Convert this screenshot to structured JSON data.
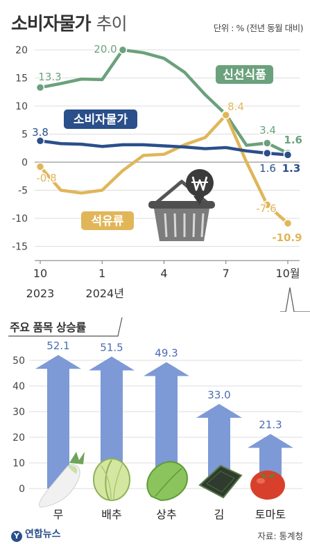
{
  "header": {
    "title": "소비자물가",
    "subtitle": "추이",
    "unit_note": "단위 : % (전년 동월 대비)"
  },
  "chart_data": [
    {
      "type": "line",
      "x": [
        "2023-10",
        "2023-11",
        "2023-12",
        "2024-01",
        "2024-02",
        "2024-03",
        "2024-04",
        "2024-05",
        "2024-06",
        "2024-07",
        "2024-08",
        "2024-09",
        "2024-10"
      ],
      "x_tick_labels": [
        "10",
        "1",
        "4",
        "7",
        "10월"
      ],
      "x_year_labels": [
        "2023",
        "2024년"
      ],
      "ylim": [
        -15,
        20
      ],
      "yticks": [
        "20",
        "15",
        "10",
        "5",
        "0",
        "-5",
        "-10",
        "-15"
      ],
      "grid": true,
      "series": [
        {
          "name": "신선식품",
          "color": "#6ba17c",
          "values": [
            13.3,
            14.0,
            14.8,
            14.7,
            20.0,
            19.5,
            18.5,
            16.0,
            12.0,
            8.5,
            3.0,
            3.4,
            1.6
          ]
        },
        {
          "name": "소비자물가",
          "color": "#2a4f8a",
          "values": [
            3.8,
            3.3,
            3.2,
            2.8,
            3.1,
            3.1,
            2.9,
            2.7,
            2.4,
            2.6,
            2.0,
            1.6,
            1.3
          ]
        },
        {
          "name": "석유류",
          "color": "#e0b659",
          "values": [
            -0.8,
            -5.0,
            -5.5,
            -5.0,
            -1.5,
            1.2,
            1.4,
            3.1,
            4.4,
            8.4,
            0.0,
            -7.6,
            -10.9
          ]
        }
      ],
      "data_labels": [
        "20.0",
        "13.3",
        "8.4",
        "3.4",
        "1.6",
        "3.8",
        "1.6",
        "1.3",
        "-0.8",
        "-7.6",
        "-10.9"
      ]
    },
    {
      "type": "bar",
      "title": "주요 품목 상승률",
      "categories": [
        "무",
        "배추",
        "상추",
        "김",
        "토마토"
      ],
      "values": [
        52.1,
        51.5,
        49.3,
        33.0,
        21.3
      ],
      "value_labels": [
        "52.1",
        "51.5",
        "49.3",
        "33.0",
        "21.3"
      ],
      "ylim": [
        0,
        55
      ],
      "yticks": [
        "50",
        "40",
        "30",
        "20",
        "10",
        "0"
      ],
      "grid": true
    }
  ],
  "footer": {
    "logo": "연합뉴스",
    "source": "자료: 통계청"
  },
  "colors": {
    "fresh_food": "#6ba17c",
    "cpi": "#2a4f8a",
    "oil": "#e0b659",
    "bar_arrow": "#7d99d6",
    "value_label": "#4a6cb3"
  },
  "icons": [
    "won-coin-icon",
    "shopping-basket-icon",
    "radish-icon",
    "cabbage-icon",
    "lettuce-icon",
    "seaweed-icon",
    "tomato-icon"
  ]
}
